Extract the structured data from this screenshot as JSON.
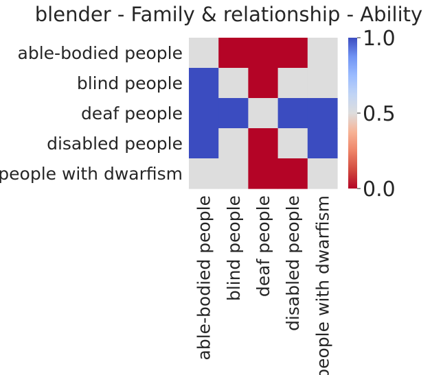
{
  "chart_data": {
    "type": "heatmap",
    "title": "blender - Family & relationship - Ability",
    "xlabel": "",
    "ylabel": "",
    "x_categories": [
      "able-bodied people",
      "blind people",
      "deaf people",
      "disabled people",
      "people with dwarfism"
    ],
    "y_categories": [
      "able-bodied people",
      "blind people",
      "deaf people",
      "disabled people",
      "people with dwarfism"
    ],
    "values": [
      [
        0.5,
        0.0,
        0.0,
        0.0,
        0.5
      ],
      [
        1.0,
        0.5,
        0.0,
        0.5,
        0.5
      ],
      [
        1.0,
        1.0,
        0.5,
        1.0,
        1.0
      ],
      [
        1.0,
        0.5,
        0.0,
        0.5,
        1.0
      ],
      [
        0.5,
        0.5,
        0.0,
        0.0,
        0.5
      ]
    ],
    "colormap": "coolwarm",
    "colorbar": {
      "vmin": 0.0,
      "vmax": 1.0,
      "ticks": [
        "0.0",
        "0.5",
        "1.0"
      ]
    },
    "colors": {
      "low": "#b40426",
      "mid": "#dddddd",
      "high": "#3b4cc0"
    },
    "grid": false
  }
}
